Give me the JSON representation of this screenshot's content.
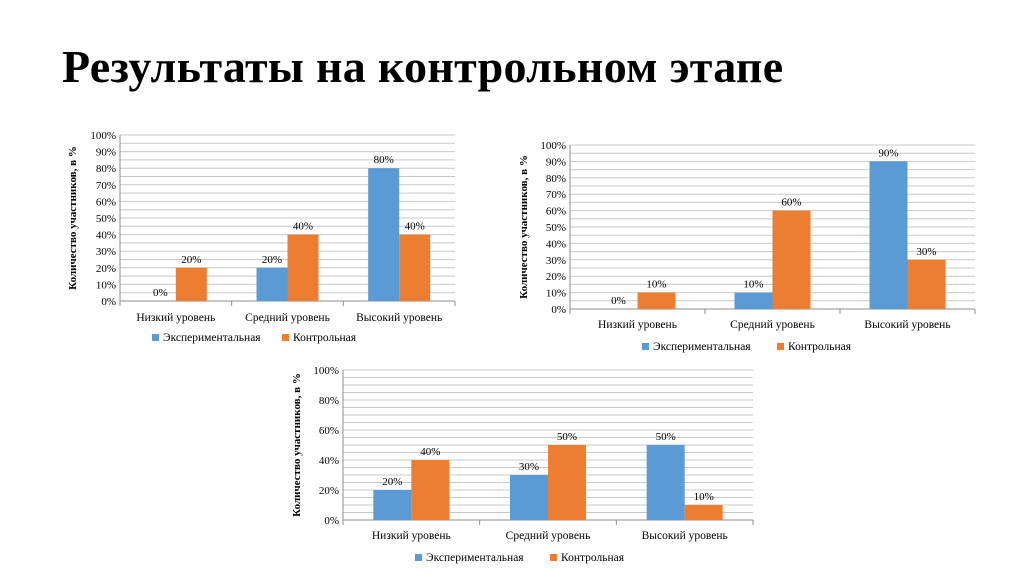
{
  "title": "Результаты на контрольном этапе",
  "chart_data": [
    {
      "type": "bar",
      "ylabel": "Количество участников, в %",
      "ylim": [
        0,
        100
      ],
      "yticks": [
        "0%",
        "10%",
        "20%",
        "30%",
        "40%",
        "50%",
        "60%",
        "70%",
        "80%",
        "90%",
        "100%"
      ],
      "categories": [
        "Низкий уровень",
        "Средний уровень",
        "Высокий уровень"
      ],
      "series": [
        {
          "name": "Экспериментальная",
          "color": "#5b9bd5",
          "values": [
            0,
            20,
            80
          ],
          "labels": [
            "0%",
            "20%",
            "80%"
          ]
        },
        {
          "name": "Контрольная",
          "color": "#ed7d31",
          "values": [
            20,
            40,
            40
          ],
          "labels": [
            "20%",
            "40%",
            "40%"
          ]
        }
      ],
      "grid": true,
      "legend": "bottom"
    },
    {
      "type": "bar",
      "ylabel": "Количество участников, в %",
      "ylim": [
        0,
        100
      ],
      "yticks": [
        "0%",
        "10%",
        "20%",
        "30%",
        "40%",
        "50%",
        "60%",
        "70%",
        "80%",
        "90%",
        "100%"
      ],
      "categories": [
        "Низкий уровень",
        "Средний уровень",
        "Высокий уровень"
      ],
      "series": [
        {
          "name": "Экспериментальная",
          "color": "#5b9bd5",
          "values": [
            0,
            10,
            90
          ],
          "labels": [
            "0%",
            "10%",
            "90%"
          ]
        },
        {
          "name": "Контрольная",
          "color": "#ed7d31",
          "values": [
            10,
            60,
            30
          ],
          "labels": [
            "10%",
            "60%",
            "30%"
          ]
        }
      ],
      "grid": true,
      "legend": "bottom"
    },
    {
      "type": "bar",
      "ylabel": "Количество участников, в %",
      "ylim": [
        0,
        100
      ],
      "yticks": [
        "0%",
        "20%",
        "40%",
        "60%",
        "80%",
        "100%"
      ],
      "categories": [
        "Низкий уровень",
        "Средний уровень",
        "Высокий уровень"
      ],
      "series": [
        {
          "name": "Экспериментальная",
          "color": "#5b9bd5",
          "values": [
            20,
            30,
            50
          ],
          "labels": [
            "20%",
            "30%",
            "50%"
          ]
        },
        {
          "name": "Контрольная",
          "color": "#ed7d31",
          "values": [
            40,
            50,
            10
          ],
          "labels": [
            "40%",
            "50%",
            "10%"
          ]
        }
      ],
      "grid": true,
      "legend": "bottom"
    }
  ]
}
